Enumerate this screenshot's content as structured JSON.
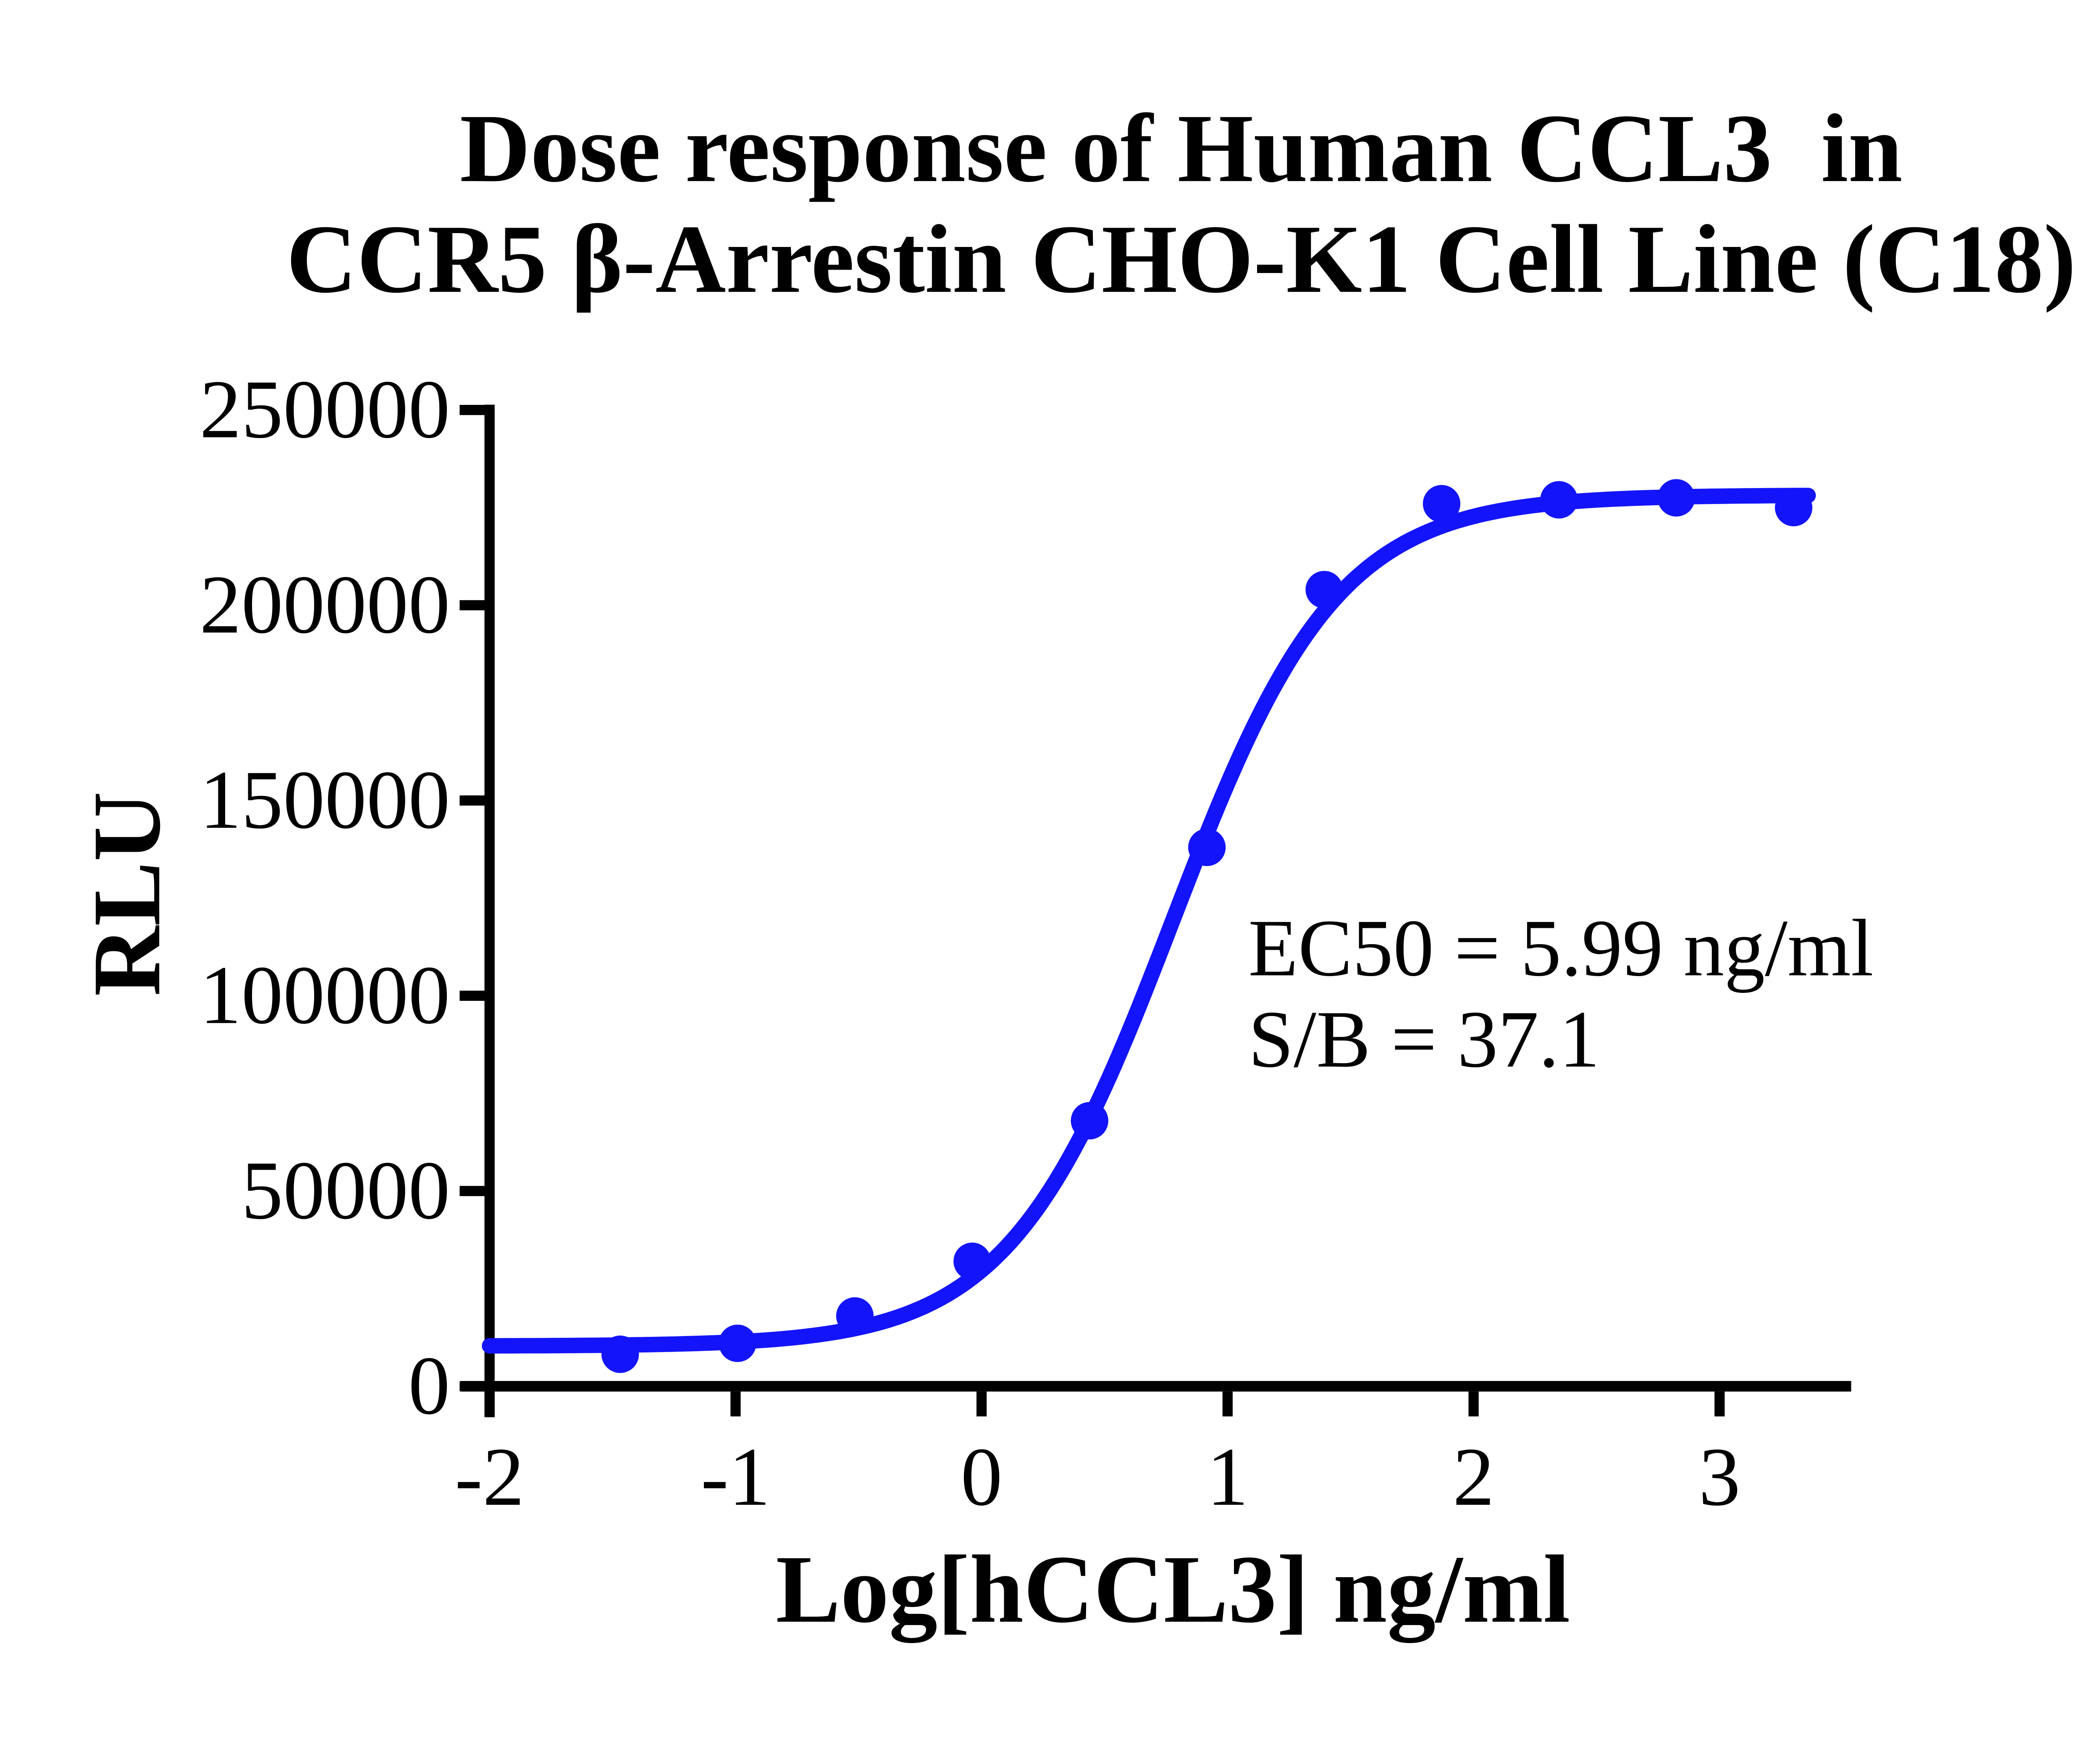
{
  "chart_data": {
    "type": "scatter",
    "title": [
      "Dose response of Human CCL3  in",
      "CCR5 β-Arrestin CHO-K1 Cell Line (C18)"
    ],
    "xlabel": "Log[hCCL3] ng/ml",
    "ylabel": "RLU",
    "xlim": [
      -2,
      3.53
    ],
    "ylim": [
      0,
      250000
    ],
    "x_ticks": [
      -2,
      -1,
      0,
      1,
      2,
      3
    ],
    "y_ticks": [
      0,
      50000,
      100000,
      150000,
      200000,
      250000
    ],
    "grid": false,
    "legend": false,
    "axis_color": "#000000",
    "series": [
      {
        "name": "Human CCL3",
        "color": "#1414fa",
        "marker": "circle",
        "points": [
          {
            "x": -1.469,
            "y": 8200
          },
          {
            "x": -0.992,
            "y": 11000
          },
          {
            "x": -0.515,
            "y": 18000
          },
          {
            "x": -0.038,
            "y": 32000
          },
          {
            "x": 0.439,
            "y": 68000
          },
          {
            "x": 0.916,
            "y": 138000
          },
          {
            "x": 1.393,
            "y": 204000
          },
          {
            "x": 1.87,
            "y": 226000
          },
          {
            "x": 2.347,
            "y": 227000
          },
          {
            "x": 2.824,
            "y": 227500
          },
          {
            "x": 3.301,
            "y": 225000
          }
        ]
      }
    ],
    "fit_curve": {
      "model": "4PL",
      "bottom": 10300,
      "top": 228200,
      "log_ec50": 0.777,
      "hill_slope": 1.3,
      "x_range": [
        -2.0,
        3.36
      ],
      "color": "#1414fa"
    },
    "annotations": [
      "EC50 = 5.99 ng/ml",
      "S/B = 37.1"
    ]
  }
}
